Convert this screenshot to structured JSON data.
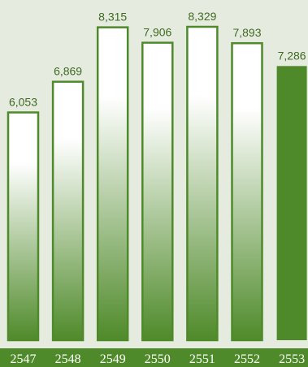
{
  "colors": {
    "background": "#e6ebe0",
    "bar_outline": "#4f8a2a",
    "bar_gradient_top": "#ffffff",
    "bar_gradient_bottom": "#4f8a2a",
    "highlight_bar": "#4f8a2a",
    "label_text": "#3f6a1f",
    "axis_band": "#4f8a2a",
    "axis_text": "#ffffff"
  },
  "chart_data": {
    "type": "bar",
    "title": "",
    "xlabel": "",
    "ylabel": "",
    "categories": [
      "2547",
      "2548",
      "2549",
      "2550",
      "2551",
      "2552",
      "2553"
    ],
    "values": [
      6053,
      6869,
      8315,
      7906,
      8329,
      7893,
      7286
    ],
    "value_labels": [
      "6,053",
      "6,869",
      "8,315",
      "7,906",
      "8,329",
      "7,893",
      "7,286"
    ],
    "highlighted_index": 6,
    "ylim": [
      0,
      9000
    ],
    "grid": false,
    "legend": "none"
  }
}
